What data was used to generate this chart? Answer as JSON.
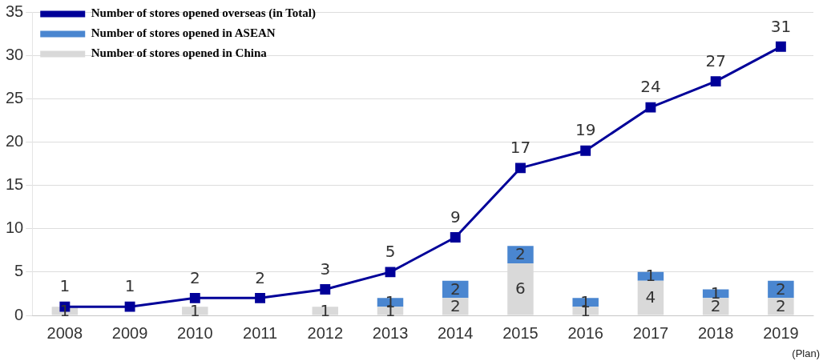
{
  "chart_data": {
    "type": "bar",
    "stacked": true,
    "categories": [
      "2008",
      "2009",
      "2010",
      "2011",
      "2012",
      "2013",
      "2014",
      "2015",
      "2016",
      "2017",
      "2018",
      "2019"
    ],
    "series": [
      {
        "name": "Number of stores opened in China",
        "color": "#d9d9d9",
        "values": [
          1,
          null,
          1,
          null,
          1,
          1,
          2,
          6,
          1,
          4,
          2,
          2
        ]
      },
      {
        "name": "Number of stores opened in ASEAN",
        "color": "#4a86d0",
        "values": [
          null,
          null,
          null,
          null,
          null,
          1,
          2,
          2,
          1,
          1,
          1,
          2
        ]
      },
      {
        "name": "Number of stores opened overseas (in Total)",
        "type": "line",
        "color": "#000099",
        "marker": "square",
        "values": [
          1,
          1,
          2,
          2,
          3,
          5,
          9,
          17,
          19,
          24,
          27,
          31
        ]
      }
    ],
    "ylim": [
      0,
      35
    ],
    "yticks": [
      0,
      5,
      10,
      15,
      20,
      25,
      30,
      35
    ],
    "grid": "y",
    "legend": "top left",
    "data_labels": true,
    "annotations": [
      "(Plan)"
    ]
  }
}
